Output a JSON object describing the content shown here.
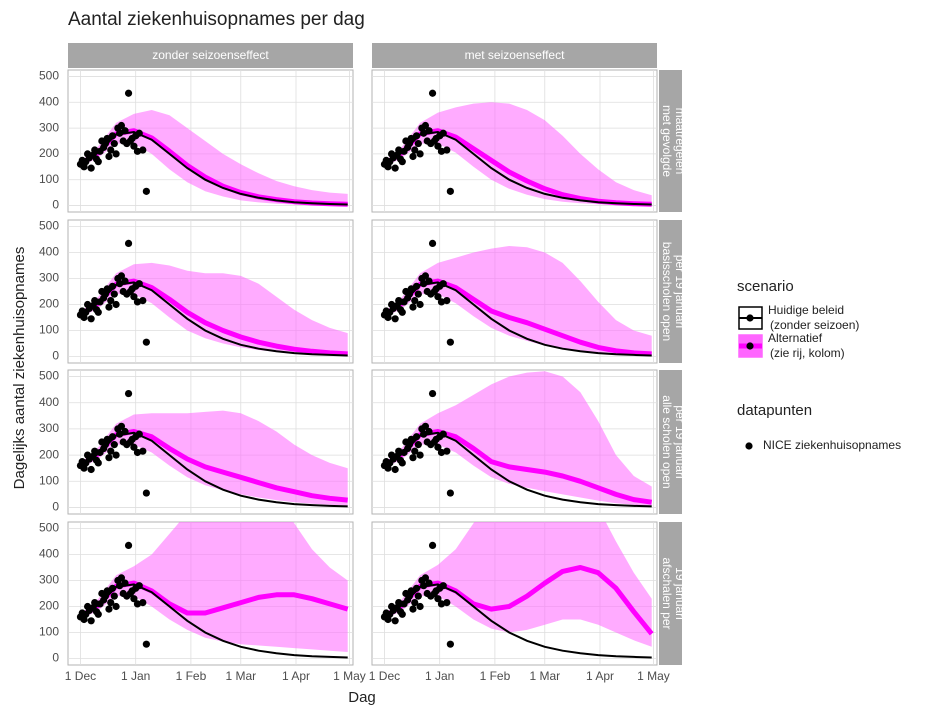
{
  "chart_data": {
    "type": "line",
    "title": "Aantal ziekenhuisopnames per dag",
    "x_label": "Dag",
    "y_label": "Dagelijks aantal ziekenhuisopnames",
    "xlim": [
      -7,
      153
    ],
    "xticks": [
      {
        "value": 0,
        "label": "1 Dec"
      },
      {
        "value": 31,
        "label": "1 Jan"
      },
      {
        "value": 62,
        "label": "1 Feb"
      },
      {
        "value": 90,
        "label": "1 Mar"
      },
      {
        "value": 121,
        "label": "1 Apr"
      },
      {
        "value": 151,
        "label": "1 May"
      }
    ],
    "ylim": [
      -25,
      525
    ],
    "yticks": [
      0,
      100,
      200,
      300,
      400,
      500
    ],
    "grid": true,
    "legend_title": "scenario",
    "points_legend_title": "datapunten",
    "series": [
      {
        "name": [
          "Huidige beleid",
          "(zonder seizoen)"
        ],
        "color": "#000000"
      },
      {
        "name": [
          "Alternatief",
          "(zie rij, kolom)"
        ],
        "color": "#ff00ff",
        "band_color": "#ff66ff"
      }
    ],
    "points": {
      "name": "NICE ziekenhuisopnames",
      "color": "#000000",
      "x": [
        0,
        1,
        2,
        3,
        4,
        5,
        6,
        7,
        8,
        9,
        10,
        11,
        12,
        13,
        14,
        15,
        16,
        17,
        18,
        19,
        20,
        21,
        22,
        23,
        24,
        25,
        26,
        27,
        28,
        29,
        30,
        31,
        32,
        33,
        35,
        37
      ],
      "y": [
        160,
        175,
        150,
        170,
        200,
        185,
        145,
        195,
        215,
        180,
        170,
        210,
        250,
        225,
        240,
        260,
        190,
        215,
        270,
        240,
        200,
        300,
        280,
        310,
        250,
        290,
        240,
        435,
        250,
        260,
        230,
        270,
        210,
        280,
        215,
        55
      ]
    },
    "x": [
      0,
      10,
      20,
      30,
      40,
      50,
      60,
      70,
      80,
      90,
      100,
      110,
      120,
      130,
      140,
      150
    ],
    "baseline": [
      160,
      205,
      275,
      285,
      255,
      200,
      145,
      100,
      68,
      45,
      30,
      20,
      13,
      9,
      6,
      4
    ],
    "facet_columns": [
      "zonder seizoenseffect",
      "met seizoenseffect"
    ],
    "facet_rows": [
      {
        "label": [
          "met gevolgde",
          "maatregelen"
        ],
        "panels": [
          {
            "alternative": [
              160,
              205,
              278,
              290,
              262,
              210,
              155,
              110,
              75,
              50,
              34,
              23,
              15,
              10,
              7,
              5
            ],
            "upper": [
              170,
              230,
              320,
              355,
              370,
              350,
              300,
              250,
              200,
              160,
              125,
              95,
              75,
              60,
              50,
              45
            ],
            "lower": [
              150,
              185,
              240,
              240,
              200,
              140,
              90,
              55,
              35,
              20,
              12,
              7,
              4,
              3,
              2,
              1
            ]
          },
          {
            "alternative": [
              160,
              205,
              278,
              290,
              265,
              220,
              175,
              130,
              95,
              65,
              42,
              27,
              17,
              11,
              7,
              5
            ],
            "upper": [
              170,
              230,
              320,
              360,
              380,
              395,
              400,
              395,
              370,
              330,
              270,
              200,
              140,
              90,
              60,
              40
            ],
            "lower": [
              150,
              185,
              240,
              240,
              205,
              150,
              100,
              65,
              42,
              25,
              15,
              9,
              5,
              3,
              2,
              1
            ]
          }
        ]
      },
      {
        "label": [
          "basisscholen open",
          "per 19 januari"
        ],
        "panels": [
          {
            "alternative": [
              160,
              205,
              278,
              290,
              265,
              220,
              170,
              130,
              100,
              75,
              55,
              40,
              28,
              20,
              14,
              10
            ],
            "upper": [
              170,
              230,
              320,
              355,
              360,
              350,
              330,
              320,
              320,
              310,
              280,
              230,
              180,
              140,
              110,
              90
            ],
            "lower": [
              150,
              185,
              240,
              240,
              205,
              150,
              100,
              70,
              50,
              35,
              25,
              17,
              11,
              7,
              5,
              3
            ]
          },
          {
            "alternative": [
              160,
              205,
              278,
              290,
              265,
              220,
              175,
              150,
              130,
              105,
              80,
              55,
              35,
              22,
              14,
              10
            ],
            "upper": [
              170,
              230,
              320,
              360,
              380,
              400,
              415,
              425,
              420,
              400,
              360,
              290,
              210,
              140,
              100,
              80
            ],
            "lower": [
              150,
              185,
              240,
              240,
              205,
              155,
              110,
              80,
              60,
              42,
              28,
              18,
              11,
              7,
              4,
              2
            ]
          }
        ]
      },
      {
        "label": [
          "alle scholen open",
          "per 19 januari"
        ],
        "panels": [
          {
            "alternative": [
              160,
              205,
              278,
              290,
              270,
              225,
              185,
              155,
              135,
              115,
              95,
              75,
              60,
              45,
              35,
              28
            ],
            "upper": [
              170,
              230,
              320,
              355,
              360,
              360,
              360,
              365,
              370,
              360,
              330,
              290,
              240,
              200,
              170,
              150
            ],
            "lower": [
              150,
              185,
              240,
              240,
              210,
              160,
              115,
              85,
              65,
              50,
              38,
              28,
              20,
              14,
              10,
              7
            ]
          },
          {
            "alternative": [
              160,
              205,
              278,
              290,
              270,
              225,
              175,
              155,
              145,
              135,
              120,
              100,
              75,
              50,
              30,
              20
            ],
            "upper": [
              170,
              230,
              320,
              360,
              390,
              430,
              470,
              500,
              515,
              520,
              500,
              440,
              330,
              200,
              120,
              80
            ],
            "lower": [
              150,
              185,
              240,
              240,
              210,
              160,
              115,
              90,
              75,
              62,
              50,
              38,
              26,
              16,
              10,
              6
            ]
          }
        ]
      },
      {
        "label": [
          "afschalen per",
          "19 januari"
        ],
        "panels": [
          {
            "alternative": [
              160,
              205,
              278,
              290,
              260,
              210,
              175,
              175,
              195,
              215,
              235,
              245,
              245,
              230,
              210,
              190
            ],
            "upper": [
              170,
              230,
              320,
              355,
              400,
              480,
              560,
              620,
              650,
              650,
              640,
              600,
              520,
              420,
              350,
              300
            ],
            "lower": [
              150,
              185,
              240,
              240,
              200,
              150,
              110,
              80,
              65,
              55,
              50,
              45,
              40,
              35,
              30,
              25
            ]
          },
          {
            "alternative": [
              160,
              205,
              278,
              290,
              260,
              210,
              190,
              200,
              240,
              290,
              335,
              350,
              330,
              270,
              180,
              95
            ],
            "upper": [
              170,
              230,
              320,
              360,
              420,
              520,
              620,
              700,
              750,
              760,
              740,
              680,
              580,
              450,
              330,
              230
            ],
            "lower": [
              150,
              185,
              240,
              240,
              200,
              150,
              115,
              100,
              110,
              130,
              150,
              150,
              130,
              100,
              70,
              45
            ]
          }
        ]
      }
    ]
  }
}
